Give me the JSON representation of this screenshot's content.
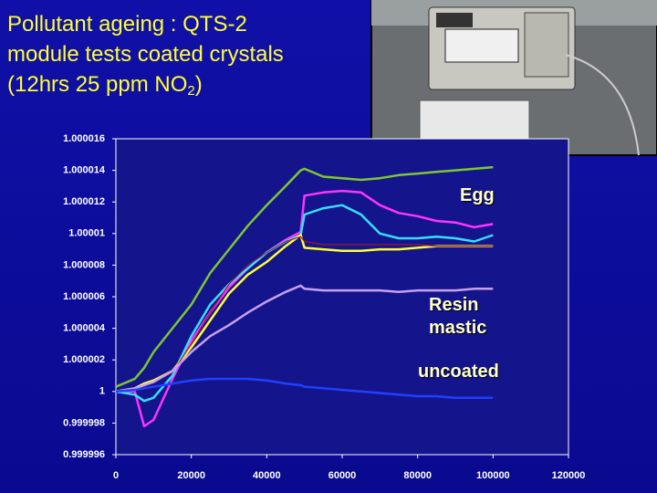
{
  "chart_data": {
    "type": "line",
    "title": {
      "lines": [
        "Pollutant ageing : QTS-2",
        "module tests coated crystals"
      ],
      "formula": [
        "(12hrs 25 ppm NO",
        "2",
        ")"
      ]
    },
    "annotations": [
      "Egg",
      "Resin mastic",
      "uncoated"
    ],
    "x": [
      0,
      5000,
      7500,
      10000,
      15000,
      20000,
      25000,
      30000,
      35000,
      40000,
      45000,
      49000,
      50000,
      55000,
      60000,
      65000,
      70000,
      75000,
      80000,
      85000,
      90000,
      95000,
      100000
    ],
    "series": [
      {
        "color": "#7dc832",
        "values": [
          1.0000003,
          1.0000008,
          1.0000015,
          1.0000025,
          1.000004,
          1.0000055,
          1.0000075,
          1.000009,
          1.0000105,
          1.0000118,
          1.000013,
          1.000014,
          1.0000141,
          1.0000136,
          1.0000135,
          1.0000134,
          1.0000135,
          1.0000137,
          1.0000138,
          1.0000139,
          1.000014,
          1.0000141,
          1.0000142
        ]
      },
      {
        "color": "#ff33ff",
        "values": [
          1,
          1,
          0.9999978,
          0.9999982,
          1.0000008,
          1.0000032,
          1.000005,
          1.0000066,
          1.0000078,
          1.0000088,
          1.0000096,
          1.0000101,
          1.0000124,
          1.0000126,
          1.0000127,
          1.0000126,
          1.0000118,
          1.0000113,
          1.0000111,
          1.0000108,
          1.0000107,
          1.0000104,
          1.0000106
        ]
      },
      {
        "color": "#33e0ff",
        "values": [
          1,
          0.9999998,
          0.9999994,
          0.9999996,
          1.000001,
          1.0000035,
          1.0000055,
          1.0000068,
          1.0000078,
          1.0000088,
          1.0000095,
          1.0000099,
          1.0000112,
          1.0000116,
          1.0000118,
          1.0000112,
          1.00001,
          1.0000097,
          1.0000097,
          1.0000098,
          1.0000097,
          1.0000095,
          1.0000099
        ]
      },
      {
        "color": "#ffff33",
        "values": [
          1,
          1.0000002,
          1.0000005,
          1.0000007,
          1.0000013,
          1.0000028,
          1.0000045,
          1.0000062,
          1.0000074,
          1.0000082,
          1.0000092,
          1.0000099,
          1.0000091,
          1.000009,
          1.0000089,
          1.0000089,
          1.000009,
          1.000009,
          1.0000091,
          1.0000092,
          1.0000092,
          1.0000092,
          1.0000092
        ]
      },
      {
        "color": "#a01830",
        "values": [
          1,
          1.0000002,
          1.0000004,
          1.0000006,
          1.0000012,
          1.000003,
          1.000005,
          1.0000068,
          1.000008,
          1.0000088,
          1.0000095,
          1.0000098,
          1.0000095,
          1.0000093,
          1.0000093,
          1.0000093,
          1.0000093,
          1.0000093,
          1.0000093,
          1.0000092,
          1.0000092,
          1.0000092,
          1.0000092
        ]
      },
      {
        "color": "#c8a0f0",
        "values": [
          1,
          1.0000002,
          1.0000004,
          1.0000006,
          1.0000013,
          1.0000025,
          1.0000035,
          1.0000042,
          1.000005,
          1.0000057,
          1.0000063,
          1.0000067,
          1.0000065,
          1.0000064,
          1.0000064,
          1.0000064,
          1.0000064,
          1.0000063,
          1.0000064,
          1.0000064,
          1.0000064,
          1.0000065,
          1.0000065
        ]
      },
      {
        "color": "#2040ff",
        "values": [
          1,
          1.0000001,
          1.0000002,
          1.0000003,
          1.0000005,
          1.0000007,
          1.0000008,
          1.0000008,
          1.0000008,
          1.0000007,
          1.0000005,
          1.0000004,
          1.0000003,
          1.0000002,
          1.0000001,
          1,
          0.9999999,
          0.9999998,
          0.9999997,
          0.9999997,
          0.9999996,
          0.9999996,
          0.9999996
        ]
      }
    ],
    "xlim": [
      0,
      120000
    ],
    "xticks": [
      0,
      20000,
      40000,
      60000,
      80000,
      100000,
      120000
    ],
    "ylim": [
      0.999996,
      1.000016
    ],
    "yticks": [
      0.999996,
      0.999998,
      1,
      1.000002,
      1.000004,
      1.000006,
      1.000008,
      1.00001,
      1.000012,
      1.000014,
      1.000016
    ]
  }
}
